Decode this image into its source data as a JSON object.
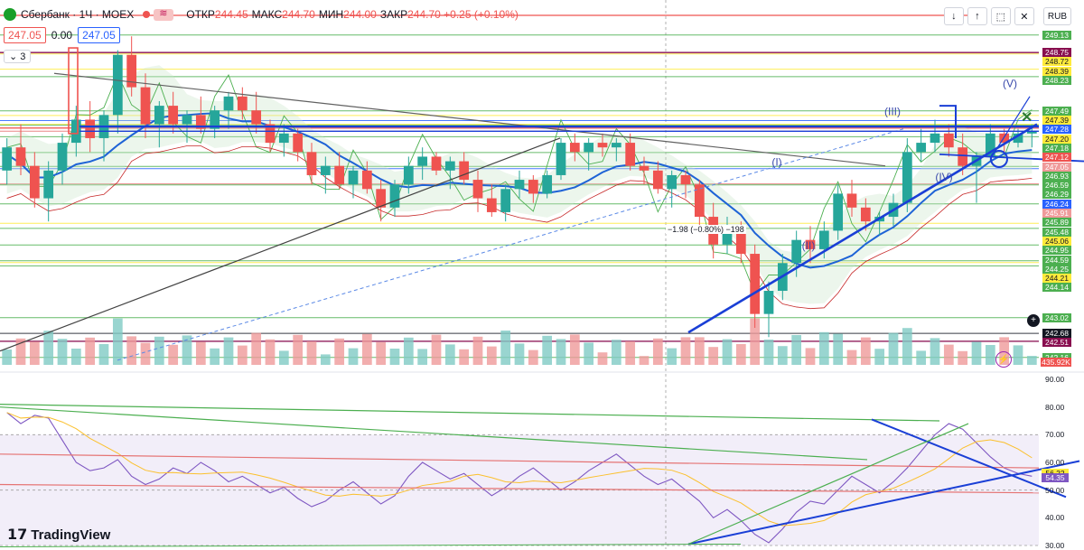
{
  "header": {
    "title": "Сбербанк · 1Ч · MOEX",
    "ohlc": [
      {
        "label": "ОТКР",
        "value": "244.45"
      },
      {
        "label": "МАКС",
        "value": "244.70"
      },
      {
        "label": "МИН",
        "value": "244.00"
      },
      {
        "label": "ЗАКР",
        "value": "244.70"
      },
      {
        "label": "",
        "value": "+0.25 (+0.10%)"
      }
    ],
    "sell_price": "247.05",
    "spread": "0.00",
    "buy_price": "247.05",
    "indicator_count": "3",
    "currency": "RUB"
  },
  "toolbar": {
    "icons": [
      "arrow-down-icon",
      "arrow-up-icon",
      "dashed-square-icon",
      "close-icon"
    ]
  },
  "branding": {
    "name": "TradingView"
  },
  "measure_label": "−1.98 (−0.80%) −198",
  "wave_labels": [
    "(I)",
    "(II)",
    "(III)",
    "(IV)",
    "(V)"
  ],
  "chart_data": [
    {
      "type": "candlestick",
      "symbol": "Сбербанк",
      "interval": "1Ч",
      "exchange": "MOEX",
      "ylim": [
        242.0,
        249.3
      ],
      "price_labels": [
        {
          "value": "249.13",
          "color": "#4caf50"
        },
        {
          "value": "248.75",
          "color": "#880e4f"
        },
        {
          "value": "248.72",
          "color": "#ffeb3b"
        },
        {
          "value": "248.39",
          "color": "#ffeb3b"
        },
        {
          "value": "248.23",
          "color": "#4caf50"
        },
        {
          "value": "247.49",
          "color": "#4caf50"
        },
        {
          "value": "247.39",
          "color": "#ffeb3b"
        },
        {
          "value": "247.28",
          "color": "#2962ff"
        },
        {
          "value": "247.20",
          "color": "#ffeb3b"
        },
        {
          "value": "247.18",
          "color": "#4caf50"
        },
        {
          "value": "247.12",
          "color": "#ef5350"
        },
        {
          "value": "247.05",
          "color": "#ef9a9a"
        },
        {
          "value": "246.93",
          "color": "#4caf50"
        },
        {
          "value": "246.59",
          "color": "#4caf50"
        },
        {
          "value": "246.29",
          "color": "#4caf50"
        },
        {
          "value": "246.24",
          "color": "#2962ff"
        },
        {
          "value": "245.91",
          "color": "#ef9a9a"
        },
        {
          "value": "245.89",
          "color": "#4caf50"
        },
        {
          "value": "245.48",
          "color": "#4caf50"
        },
        {
          "value": "245.06",
          "color": "#ffeb3b"
        },
        {
          "value": "244.95",
          "color": "#4caf50"
        },
        {
          "value": "244.59",
          "color": "#4caf50"
        },
        {
          "value": "244.25",
          "color": "#4caf50"
        },
        {
          "value": "244.21",
          "color": "#ffeb3b"
        },
        {
          "value": "244.14",
          "color": "#4caf50"
        },
        {
          "value": "243.02",
          "color": "#4caf50"
        },
        {
          "value": "242.68",
          "color": "#131722"
        },
        {
          "value": "242.51",
          "color": "#880e4f"
        },
        {
          "value": "242.16",
          "color": "#4caf50"
        }
      ],
      "volume_label": "435.92K",
      "candles": [
        [
          246.2,
          246.9,
          245.9,
          246.7
        ],
        [
          246.7,
          247.2,
          246.1,
          246.3
        ],
        [
          246.3,
          246.6,
          245.4,
          245.6
        ],
        [
          245.6,
          246.4,
          245.1,
          246.2
        ],
        [
          246.2,
          247.0,
          245.9,
          246.8
        ],
        [
          246.8,
          247.6,
          246.5,
          247.3
        ],
        [
          247.3,
          247.7,
          246.6,
          246.9
        ],
        [
          246.9,
          247.5,
          246.4,
          247.4
        ],
        [
          247.4,
          248.8,
          247.0,
          248.7
        ],
        [
          248.7,
          249.1,
          247.8,
          248.0
        ],
        [
          248.0,
          248.3,
          246.9,
          247.2
        ],
        [
          247.2,
          247.7,
          246.7,
          247.6
        ],
        [
          247.6,
          247.9,
          247.0,
          247.2
        ],
        [
          247.2,
          247.5,
          246.8,
          247.4
        ],
        [
          247.4,
          247.8,
          247.0,
          247.1
        ],
        [
          247.1,
          247.6,
          246.9,
          247.5
        ],
        [
          247.5,
          247.9,
          247.1,
          247.8
        ],
        [
          247.8,
          248.0,
          247.3,
          247.5
        ],
        [
          247.5,
          247.9,
          247.0,
          247.2
        ],
        [
          247.2,
          247.3,
          246.6,
          246.8
        ],
        [
          246.8,
          247.2,
          246.5,
          247.0
        ],
        [
          247.0,
          247.1,
          246.4,
          246.6
        ],
        [
          246.6,
          246.8,
          245.9,
          246.1
        ],
        [
          246.1,
          246.5,
          245.7,
          246.3
        ],
        [
          246.3,
          246.6,
          245.8,
          245.9
        ],
        [
          245.9,
          246.3,
          245.6,
          246.2
        ],
        [
          246.2,
          246.4,
          245.7,
          245.8
        ],
        [
          245.8,
          246.0,
          245.1,
          245.4
        ],
        [
          245.4,
          246.0,
          245.2,
          245.9
        ],
        [
          245.9,
          246.5,
          245.7,
          246.3
        ],
        [
          246.3,
          246.7,
          246.0,
          246.5
        ],
        [
          246.5,
          246.6,
          246.1,
          246.2
        ],
        [
          246.2,
          246.5,
          245.8,
          246.4
        ],
        [
          246.4,
          246.6,
          245.9,
          246.0
        ],
        [
          246.0,
          246.2,
          245.3,
          245.6
        ],
        [
          245.6,
          245.9,
          245.2,
          245.3
        ],
        [
          245.3,
          245.9,
          245.1,
          245.8
        ],
        [
          245.8,
          246.2,
          245.6,
          246.0
        ],
        [
          246.0,
          246.1,
          245.5,
          245.7
        ],
        [
          245.7,
          246.2,
          245.6,
          246.1
        ],
        [
          246.1,
          246.9,
          246.0,
          246.8
        ],
        [
          246.8,
          247.0,
          246.4,
          246.6
        ],
        [
          246.6,
          246.9,
          246.2,
          246.8
        ],
        [
          246.8,
          247.0,
          246.5,
          246.7
        ],
        [
          246.7,
          246.9,
          246.4,
          246.8
        ],
        [
          246.8,
          247.0,
          246.2,
          246.3
        ],
        [
          246.3,
          246.5,
          245.9,
          246.2
        ],
        [
          246.2,
          246.4,
          245.7,
          245.8
        ],
        [
          245.8,
          246.2,
          245.4,
          246.1
        ],
        [
          246.1,
          246.2,
          245.6,
          245.9
        ],
        [
          245.9,
          246.0,
          245.0,
          245.2
        ],
        [
          245.2,
          245.5,
          244.3,
          244.6
        ],
        [
          244.6,
          245.2,
          244.4,
          244.9
        ],
        [
          244.9,
          245.1,
          244.2,
          244.4
        ],
        [
          244.4,
          244.6,
          242.8,
          243.1
        ],
        [
          243.1,
          243.8,
          242.6,
          243.6
        ],
        [
          243.6,
          244.4,
          243.4,
          244.2
        ],
        [
          244.2,
          244.9,
          243.9,
          244.7
        ],
        [
          244.7,
          245.0,
          244.2,
          244.5
        ],
        [
          244.5,
          245.1,
          244.3,
          244.9
        ],
        [
          244.9,
          245.9,
          244.7,
          245.7
        ],
        [
          245.7,
          246.0,
          245.2,
          245.4
        ],
        [
          245.4,
          245.6,
          244.9,
          245.1
        ],
        [
          245.1,
          245.3,
          244.8,
          245.2
        ],
        [
          245.2,
          245.7,
          245.0,
          245.5
        ],
        [
          245.5,
          246.9,
          245.3,
          246.6
        ],
        [
          246.6,
          247.1,
          246.4,
          246.8
        ],
        [
          246.8,
          247.3,
          246.6,
          247.0
        ],
        [
          247.0,
          247.2,
          246.5,
          246.7
        ],
        [
          246.7,
          247.0,
          246.1,
          246.3
        ],
        [
          246.3,
          246.6,
          245.5,
          246.5
        ],
        [
          246.5,
          247.2,
          246.4,
          247.0
        ],
        [
          247.0,
          247.1,
          246.6,
          246.8
        ],
        [
          246.8,
          247.1,
          246.7,
          247.0
        ],
        [
          247.0,
          247.2,
          246.7,
          247.05
        ]
      ]
    },
    {
      "type": "line",
      "name": "RSI",
      "ylim": [
        30,
        90
      ],
      "yticks": [
        "90.00",
        "80.00",
        "70.00",
        "60.00",
        "50.00",
        "40.00",
        "30.00"
      ],
      "value_labels": [
        {
          "value": "56.22",
          "color": "#ffeb3b"
        },
        {
          "value": "54.35",
          "color": "#7e57c2"
        }
      ],
      "values": [
        78,
        74,
        77,
        76,
        68,
        60,
        57,
        58,
        61,
        55,
        52,
        54,
        58,
        56,
        60,
        57,
        53,
        55,
        52,
        49,
        51,
        47,
        44,
        46,
        50,
        53,
        49,
        45,
        48,
        55,
        60,
        57,
        54,
        56,
        52,
        48,
        51,
        55,
        58,
        54,
        50,
        53,
        57,
        60,
        63,
        59,
        55,
        52,
        54,
        50,
        46,
        40,
        43,
        39,
        34,
        31,
        36,
        42,
        46,
        45,
        50,
        55,
        52,
        49,
        53,
        58,
        64,
        70,
        74,
        72,
        67,
        62,
        58,
        56,
        55
      ]
    }
  ]
}
